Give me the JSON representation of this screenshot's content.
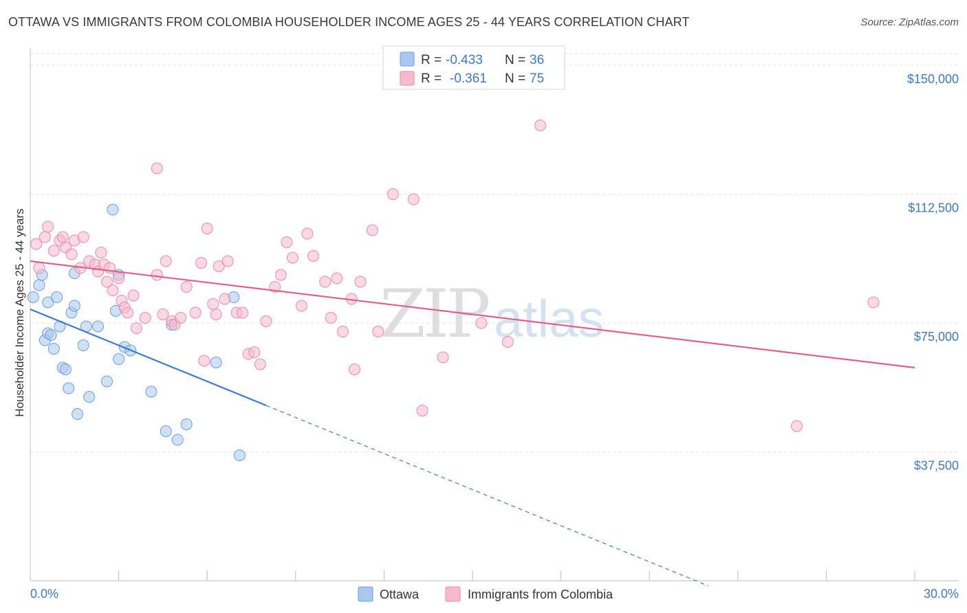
{
  "header": {
    "title": "OTTAWA VS IMMIGRANTS FROM COLOMBIA HOUSEHOLDER INCOME AGES 25 - 44 YEARS CORRELATION CHART",
    "source": "Source: ZipAtlas.com"
  },
  "watermark": {
    "zip": "ZIP",
    "atlas": "atlas"
  },
  "legend": {
    "r_label": "R =",
    "n_label": "N =",
    "series": [
      {
        "name": "Ottawa",
        "r": "-0.433",
        "n": "36",
        "color": "#a9c8ef",
        "edge": "#6a9fde"
      },
      {
        "name": "Immigrants from Colombia",
        "r": "-0.361",
        "n": "75",
        "color": "#f7b9cc",
        "edge": "#e88aa8"
      }
    ]
  },
  "chart_data": {
    "type": "scatter",
    "title": "OTTAWA VS IMMIGRANTS FROM COLOMBIA HOUSEHOLDER INCOME AGES 25 - 44 YEARS CORRELATION CHART",
    "xlabel": "",
    "ylabel": "Householder Income Ages 25 - 44 years",
    "xlim": [
      0,
      30
    ],
    "ylim": [
      0,
      155000
    ],
    "x_tick_labels": [
      "0.0%",
      "30.0%"
    ],
    "y_ticks": [
      37500,
      75000,
      112500,
      150000
    ],
    "y_tick_labels": [
      "$37,500",
      "$75,000",
      "$112,500",
      "$150,000"
    ],
    "grid": true,
    "series": [
      {
        "name": "Ottawa",
        "color": "#a9c8ef",
        "edge": "#6a9fde",
        "line_color": "#3a7bd5",
        "trend": {
          "x0": 0,
          "y0": 79000,
          "x1": 8.0,
          "y1": 51000,
          "dash_to_x": 23.0,
          "dash_to_y": -1500
        },
        "points": [
          [
            0.1,
            82500
          ],
          [
            0.3,
            86000
          ],
          [
            0.4,
            89000
          ],
          [
            0.5,
            70000
          ],
          [
            0.6,
            81000
          ],
          [
            0.6,
            72000
          ],
          [
            0.7,
            71500
          ],
          [
            0.8,
            67500
          ],
          [
            0.9,
            82500
          ],
          [
            1.0,
            74000
          ],
          [
            1.1,
            62000
          ],
          [
            1.2,
            61500
          ],
          [
            1.3,
            56000
          ],
          [
            1.4,
            78000
          ],
          [
            1.5,
            80000
          ],
          [
            1.5,
            89500
          ],
          [
            1.6,
            48500
          ],
          [
            1.8,
            68500
          ],
          [
            1.9,
            74000
          ],
          [
            2.0,
            53500
          ],
          [
            2.3,
            74000
          ],
          [
            2.6,
            58000
          ],
          [
            2.8,
            108000
          ],
          [
            2.9,
            78500
          ],
          [
            3.0,
            89000
          ],
          [
            3.0,
            64500
          ],
          [
            3.2,
            68000
          ],
          [
            3.4,
            67000
          ],
          [
            4.1,
            55000
          ],
          [
            4.6,
            43500
          ],
          [
            4.8,
            74500
          ],
          [
            5.0,
            41000
          ],
          [
            5.3,
            45500
          ],
          [
            6.3,
            63500
          ],
          [
            6.9,
            82500
          ],
          [
            7.1,
            36500
          ]
        ]
      },
      {
        "name": "Immigrants from Colombia",
        "color": "#f7b9cc",
        "edge": "#e88aa8",
        "line_color": "#e0608a",
        "trend": {
          "x0": 0,
          "y0": 93000,
          "x1": 30,
          "y1": 62000
        },
        "points": [
          [
            0.2,
            98000
          ],
          [
            0.3,
            91000
          ],
          [
            0.5,
            100000
          ],
          [
            0.6,
            103000
          ],
          [
            0.8,
            96000
          ],
          [
            1.0,
            99000
          ],
          [
            1.1,
            100000
          ],
          [
            1.2,
            97000
          ],
          [
            1.4,
            95000
          ],
          [
            1.5,
            99000
          ],
          [
            1.7,
            91000
          ],
          [
            1.8,
            100000
          ],
          [
            2.0,
            93000
          ],
          [
            2.2,
            92000
          ],
          [
            2.3,
            90000
          ],
          [
            2.4,
            95500
          ],
          [
            2.5,
            92000
          ],
          [
            2.6,
            87000
          ],
          [
            2.7,
            91000
          ],
          [
            2.8,
            84500
          ],
          [
            3.0,
            88000
          ],
          [
            3.1,
            81500
          ],
          [
            3.2,
            79500
          ],
          [
            3.3,
            78000
          ],
          [
            3.5,
            83000
          ],
          [
            3.6,
            73500
          ],
          [
            3.9,
            76500
          ],
          [
            4.3,
            89000
          ],
          [
            4.5,
            77500
          ],
          [
            4.6,
            93000
          ],
          [
            4.8,
            75500
          ],
          [
            4.9,
            74500
          ],
          [
            5.1,
            76500
          ],
          [
            5.3,
            85500
          ],
          [
            5.6,
            78000
          ],
          [
            5.8,
            92500
          ],
          [
            5.9,
            64000
          ],
          [
            6.0,
            102500
          ],
          [
            6.2,
            80500
          ],
          [
            6.3,
            77500
          ],
          [
            6.4,
            91500
          ],
          [
            6.6,
            82000
          ],
          [
            6.7,
            93000
          ],
          [
            7.0,
            78000
          ],
          [
            7.2,
            78000
          ],
          [
            7.4,
            66000
          ],
          [
            7.6,
            66500
          ],
          [
            7.8,
            63000
          ],
          [
            8.0,
            75500
          ],
          [
            8.3,
            85500
          ],
          [
            8.5,
            89000
          ],
          [
            8.7,
            98500
          ],
          [
            8.9,
            94000
          ],
          [
            9.2,
            80000
          ],
          [
            9.4,
            101000
          ],
          [
            9.6,
            94500
          ],
          [
            10.0,
            87000
          ],
          [
            10.2,
            76500
          ],
          [
            10.4,
            88000
          ],
          [
            10.6,
            72500
          ],
          [
            10.9,
            82000
          ],
          [
            11.0,
            61500
          ],
          [
            11.2,
            87000
          ],
          [
            11.6,
            102000
          ],
          [
            11.8,
            72500
          ],
          [
            12.3,
            112500
          ],
          [
            13.0,
            111000
          ],
          [
            13.3,
            49500
          ],
          [
            14.0,
            65000
          ],
          [
            15.3,
            75000
          ],
          [
            16.2,
            69500
          ],
          [
            17.3,
            132500
          ],
          [
            4.3,
            120000
          ],
          [
            26.0,
            45000
          ],
          [
            28.6,
            81000
          ]
        ]
      }
    ],
    "legend_position": "top-center"
  },
  "bottom_legend": {
    "items": [
      "Ottawa",
      "Immigrants from Colombia"
    ]
  }
}
